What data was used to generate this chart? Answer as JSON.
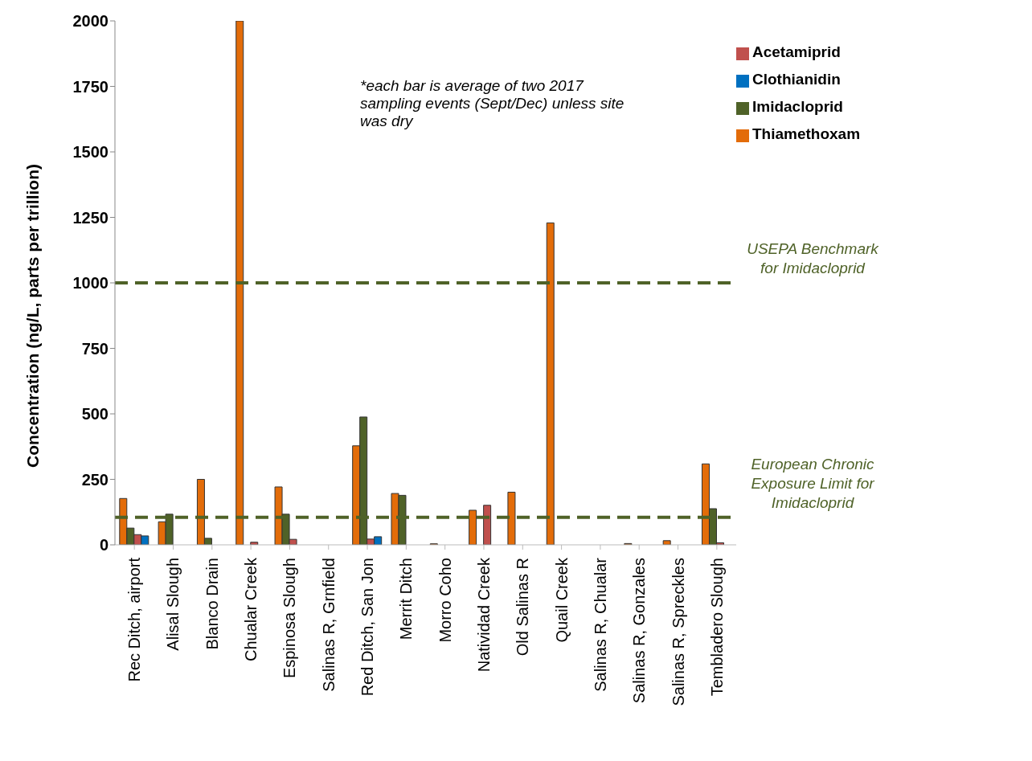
{
  "chart_data": {
    "type": "bar",
    "ylabel": "Concentration (ng/L, parts per trillion)",
    "categories": [
      "Rec Ditch, airport",
      "Alisal Slough",
      "Blanco Drain",
      "Chualar Creek",
      "Espinosa Slough",
      "Salinas R, Grnfield",
      "Red Ditch, San Jon",
      "Merrit Ditch",
      "Morro Coho",
      "Natividad Creek",
      "Old Salinas R",
      "Quail Creek",
      "Salinas R, Chualar",
      "Salinas R, Gonzales",
      "Salinas R, Spreckles",
      "Tembladero Slough"
    ],
    "series": [
      {
        "name": "Thiamethoxam",
        "color": "#e36c09",
        "values": [
          177,
          88,
          250,
          2000,
          221,
          null,
          378,
          196,
          4,
          132,
          201,
          1229,
          null,
          5,
          16,
          309
        ]
      },
      {
        "name": "Imidacloprid",
        "color": "#4f6228",
        "values": [
          64,
          117,
          25,
          null,
          117,
          null,
          488,
          189,
          null,
          null,
          null,
          null,
          null,
          null,
          null,
          138
        ]
      },
      {
        "name": "Acetamiprid",
        "color": "#c0504d",
        "values": [
          39,
          null,
          null,
          10,
          21,
          null,
          22,
          null,
          null,
          151,
          null,
          null,
          null,
          null,
          null,
          8
        ]
      },
      {
        "name": "Clothianidin",
        "color": "#0070c0",
        "values": [
          34,
          null,
          null,
          null,
          null,
          null,
          31,
          null,
          null,
          null,
          null,
          null,
          null,
          null,
          null,
          null
        ]
      }
    ],
    "ylim": [
      0,
      2000
    ],
    "yticks": [
      0,
      250,
      500,
      750,
      1000,
      1250,
      1500,
      1750,
      2000
    ],
    "grid": false,
    "legend": "top right",
    "ref_lines": [
      {
        "axis": "y",
        "value": 1000,
        "label": "USEPA Benchmark for Imidacloprid",
        "color": "#4f6228",
        "line_style": "dashed"
      },
      {
        "axis": "y",
        "value": 105,
        "label": "European Chronic Exposure Limit for Imidacloprid",
        "color": "#4f6228",
        "line_style": "dashed"
      }
    ],
    "annotations": [
      "*each bar is average of two 2017 sampling events (Sept/Dec) unless site was dry"
    ]
  }
}
